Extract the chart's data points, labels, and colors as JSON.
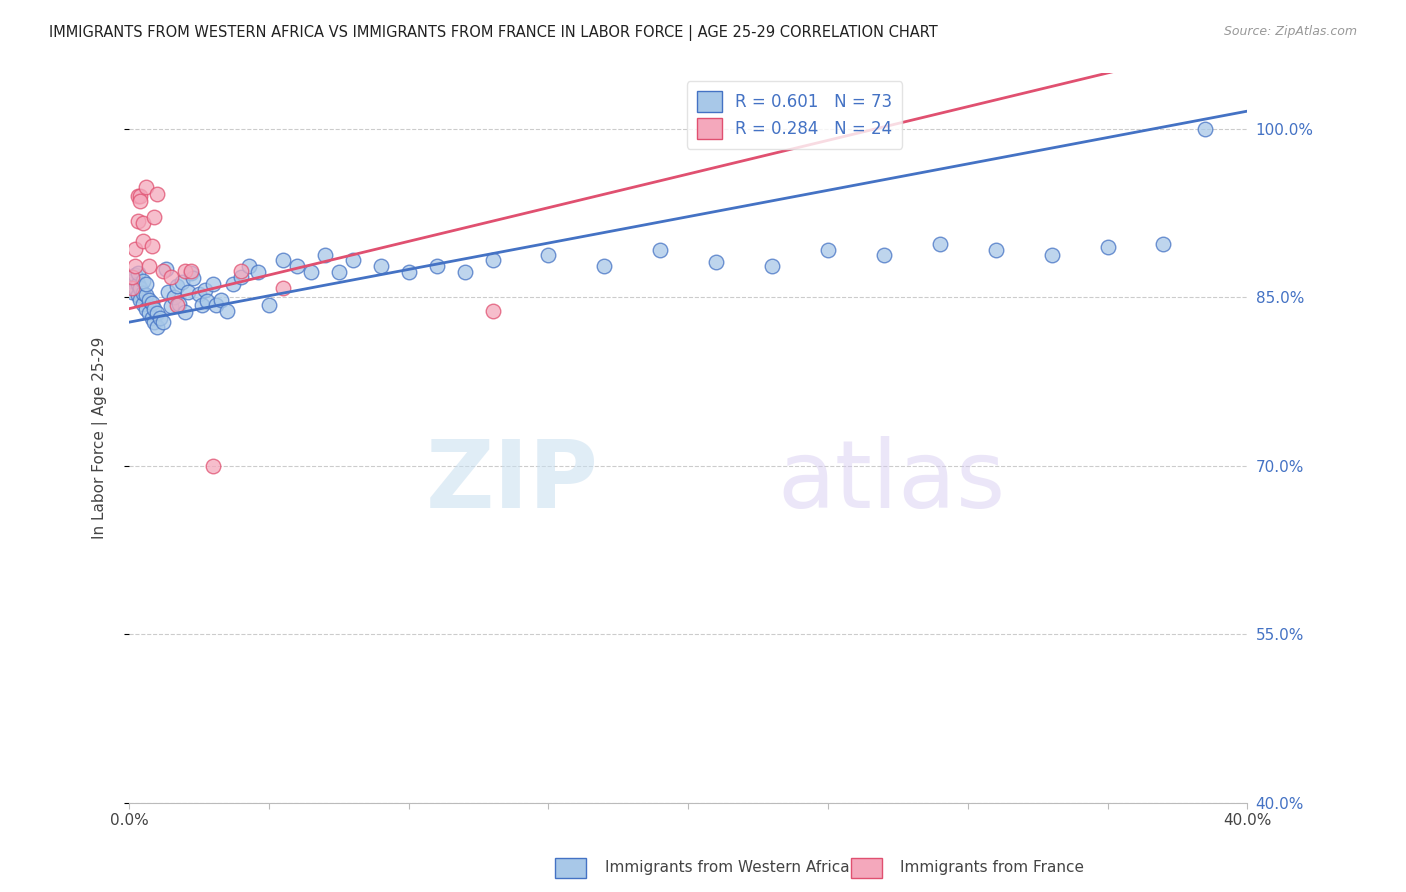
{
  "title": "IMMIGRANTS FROM WESTERN AFRICA VS IMMIGRANTS FROM FRANCE IN LABOR FORCE | AGE 25-29 CORRELATION CHART",
  "source": "Source: ZipAtlas.com",
  "ylabel": "In Labor Force | Age 25-29",
  "ylabel_right_ticks": [
    "100.0%",
    "85.0%",
    "70.0%",
    "55.0%",
    "40.0%"
  ],
  "ylabel_right_values": [
    1.0,
    0.85,
    0.7,
    0.55,
    0.4
  ],
  "xmin": 0.0,
  "xmax": 0.4,
  "ymin": 0.4,
  "ymax": 1.05,
  "legend_blue_r": "0.601",
  "legend_blue_n": "73",
  "legend_pink_r": "0.284",
  "legend_pink_n": "24",
  "color_blue": "#A8C8E8",
  "color_pink": "#F4A8BC",
  "line_blue": "#4472C4",
  "line_pink": "#E05070",
  "color_blue_text": "#4472C4",
  "watermark_zip": "ZIP",
  "watermark_atlas": "atlas",
  "blue_x": [
    0.001,
    0.001,
    0.002,
    0.002,
    0.003,
    0.003,
    0.003,
    0.004,
    0.004,
    0.005,
    0.005,
    0.005,
    0.006,
    0.006,
    0.006,
    0.007,
    0.007,
    0.008,
    0.008,
    0.009,
    0.009,
    0.01,
    0.01,
    0.011,
    0.012,
    0.013,
    0.014,
    0.015,
    0.016,
    0.017,
    0.018,
    0.019,
    0.02,
    0.021,
    0.022,
    0.023,
    0.025,
    0.026,
    0.027,
    0.028,
    0.03,
    0.031,
    0.033,
    0.035,
    0.037,
    0.04,
    0.043,
    0.046,
    0.05,
    0.055,
    0.06,
    0.065,
    0.07,
    0.075,
    0.08,
    0.09,
    0.1,
    0.11,
    0.12,
    0.13,
    0.15,
    0.17,
    0.19,
    0.21,
    0.23,
    0.25,
    0.27,
    0.29,
    0.31,
    0.33,
    0.35,
    0.37,
    0.385
  ],
  "blue_y": [
    0.855,
    0.865,
    0.858,
    0.87,
    0.852,
    0.862,
    0.872,
    0.848,
    0.858,
    0.844,
    0.854,
    0.865,
    0.84,
    0.852,
    0.862,
    0.836,
    0.848,
    0.832,
    0.845,
    0.828,
    0.84,
    0.824,
    0.836,
    0.832,
    0.828,
    0.875,
    0.855,
    0.842,
    0.85,
    0.86,
    0.844,
    0.864,
    0.837,
    0.855,
    0.872,
    0.867,
    0.853,
    0.843,
    0.857,
    0.847,
    0.862,
    0.843,
    0.848,
    0.838,
    0.862,
    0.868,
    0.878,
    0.873,
    0.843,
    0.883,
    0.878,
    0.873,
    0.888,
    0.873,
    0.883,
    0.878,
    0.873,
    0.878,
    0.873,
    0.883,
    0.888,
    0.878,
    0.892,
    0.882,
    0.878,
    0.892,
    0.888,
    0.898,
    0.892,
    0.888,
    0.895,
    0.898,
    1.0
  ],
  "pink_x": [
    0.001,
    0.001,
    0.002,
    0.002,
    0.003,
    0.003,
    0.004,
    0.004,
    0.005,
    0.005,
    0.006,
    0.007,
    0.008,
    0.009,
    0.01,
    0.012,
    0.015,
    0.017,
    0.02,
    0.022,
    0.03,
    0.04,
    0.055,
    0.13
  ],
  "pink_y": [
    0.858,
    0.868,
    0.878,
    0.893,
    0.918,
    0.94,
    0.94,
    0.936,
    0.9,
    0.916,
    0.948,
    0.878,
    0.896,
    0.922,
    0.942,
    0.874,
    0.868,
    0.843,
    0.874,
    0.874,
    0.7,
    0.874,
    0.858,
    0.838
  ],
  "reg_blue_slope": 0.47,
  "reg_blue_intercept": 0.828,
  "reg_pink_slope": 0.6,
  "reg_pink_intercept": 0.84
}
